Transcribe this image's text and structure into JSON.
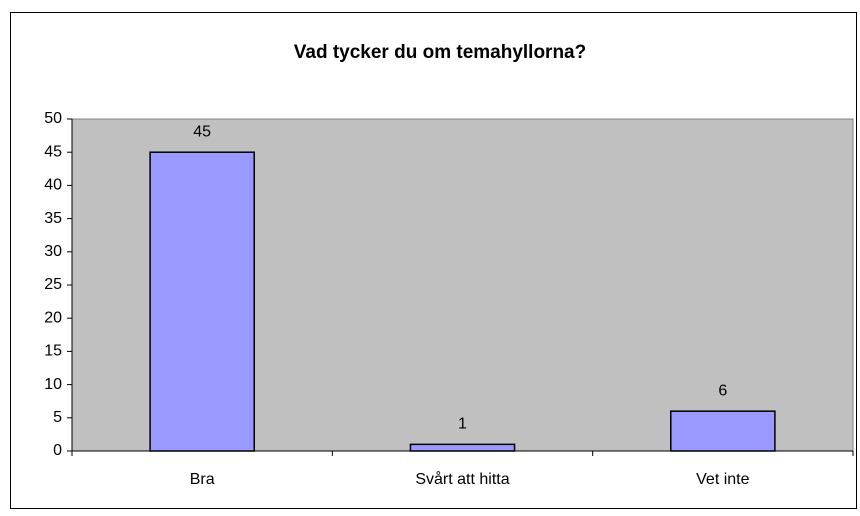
{
  "chart_data": {
    "type": "bar",
    "title": "Vad tycker du om temahyllorna?",
    "categories": [
      "Bra",
      "Svårt att hitta",
      "Vet inte"
    ],
    "values": [
      45,
      1,
      6
    ],
    "color": "#9999ff",
    "ylim": [
      0,
      50
    ],
    "yticks": [
      0,
      5,
      10,
      15,
      20,
      25,
      30,
      35,
      40,
      45,
      50
    ],
    "data_labels": true,
    "plot_background": "#c0c0c0"
  }
}
